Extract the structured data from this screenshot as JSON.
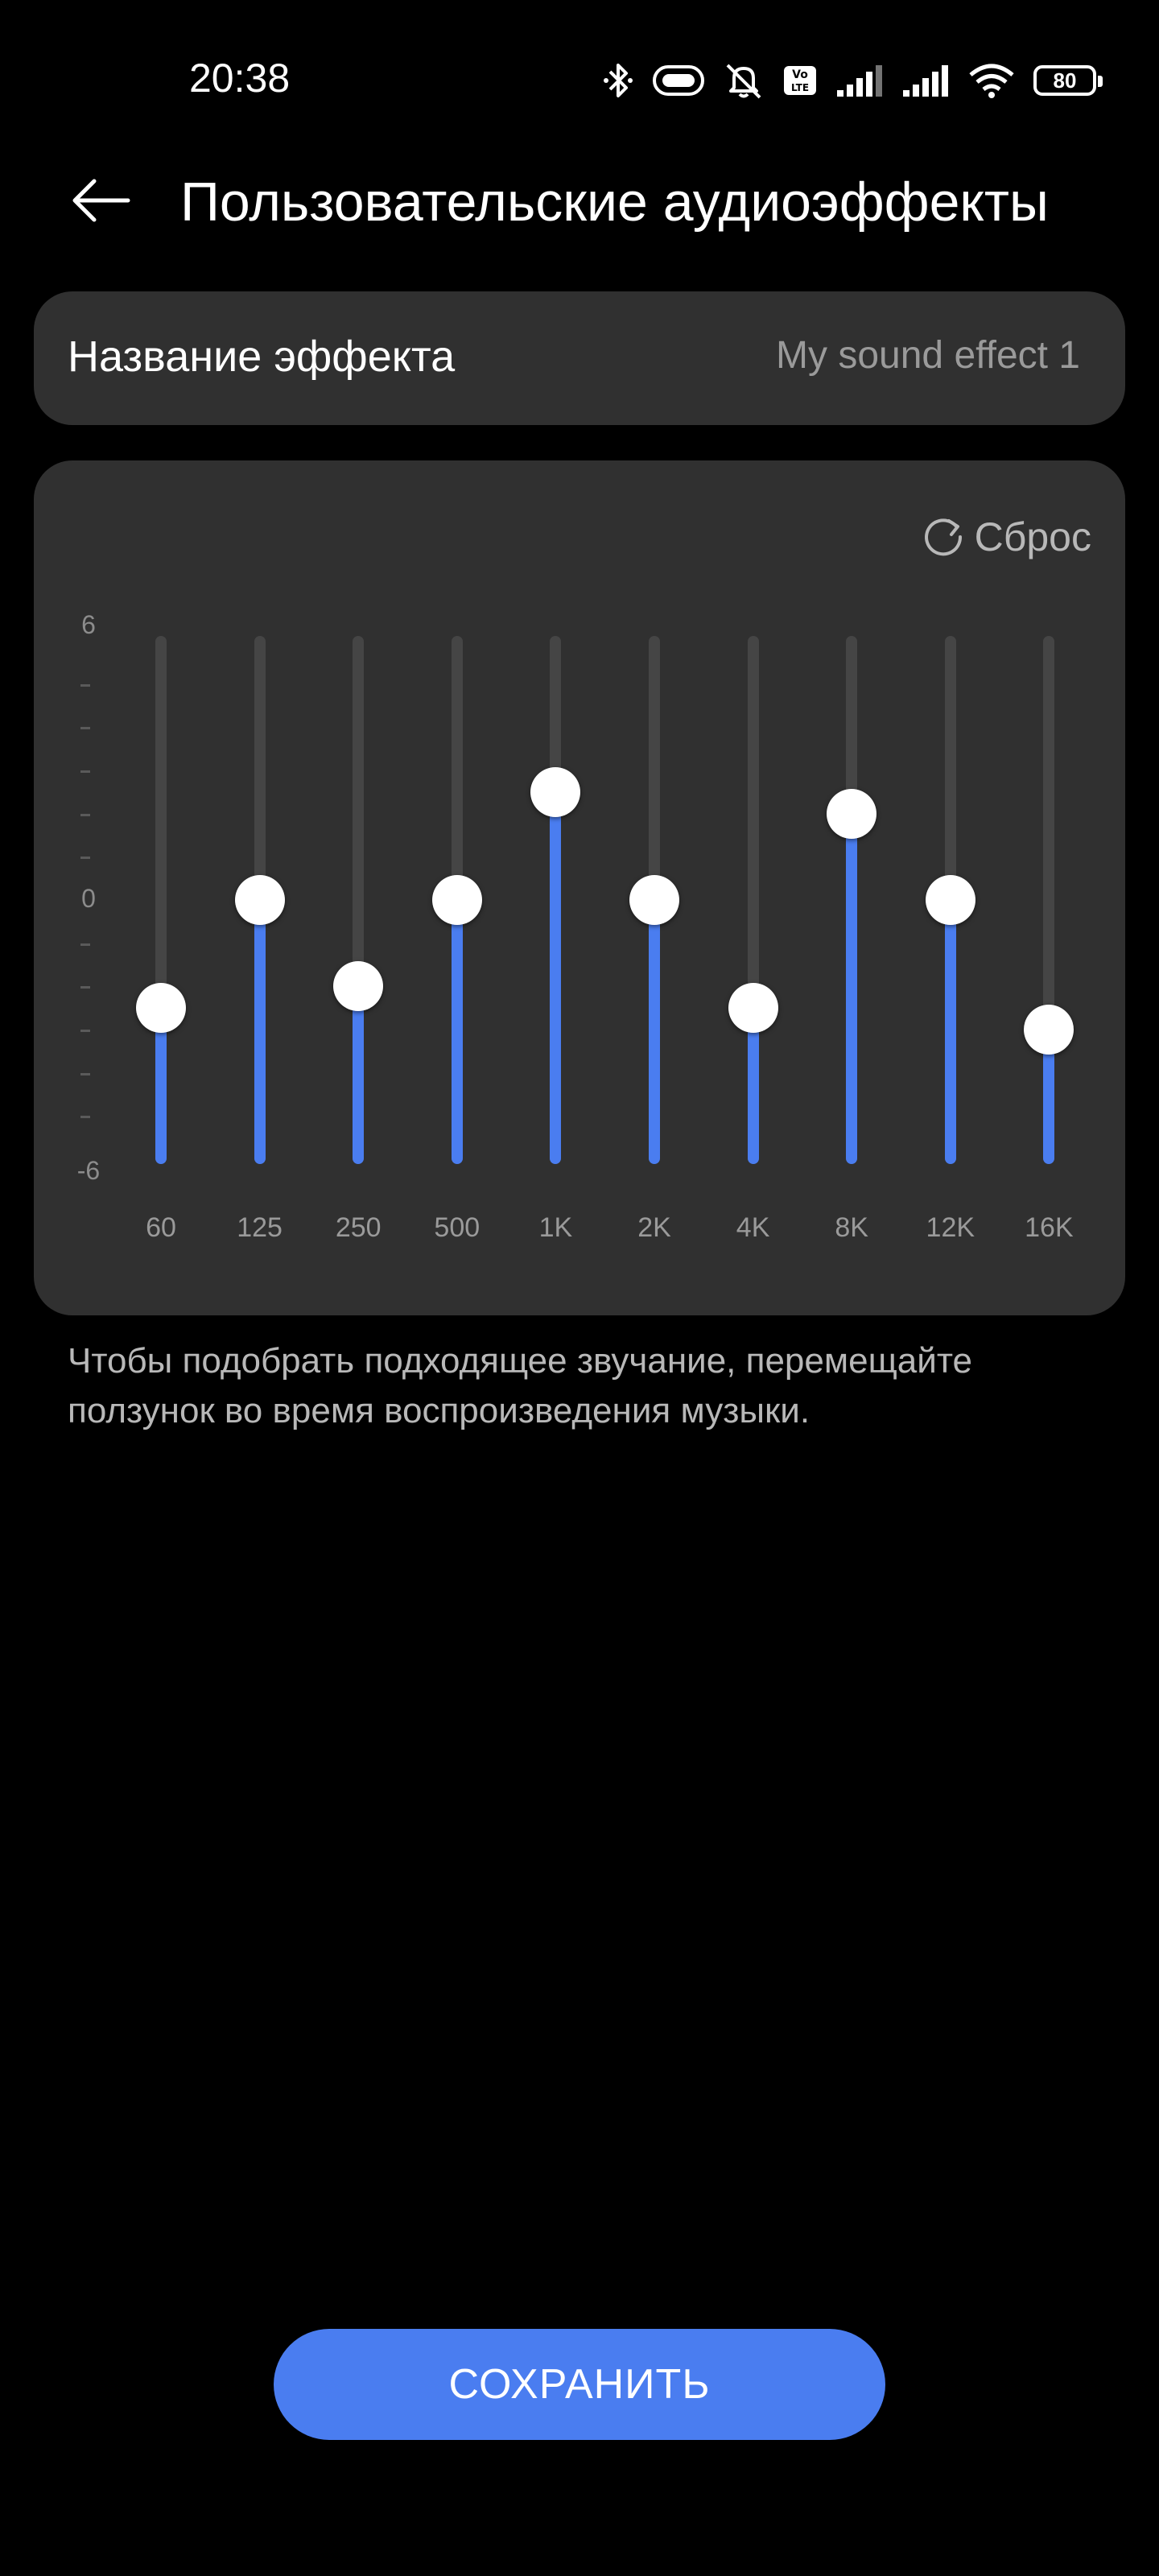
{
  "status_bar": {
    "time": "20:38",
    "battery": "80",
    "icons": [
      "bluetooth-icon",
      "headset-battery-icon",
      "silent-bell-icon",
      "volte-icon",
      "signal-1-icon",
      "signal-2-icon",
      "wifi-icon",
      "battery-icon"
    ]
  },
  "header": {
    "title": "Пользовательские аудиоэффекты",
    "back_icon": "arrow-left-icon"
  },
  "effect_name": {
    "label": "Название эффекта",
    "value": "My sound effect 1"
  },
  "equalizer": {
    "reset_label": "Сброс",
    "reset_icon": "refresh-icon",
    "scale": {
      "max": "6",
      "mid": "0",
      "min": "-6"
    },
    "range": [
      -6,
      6
    ],
    "bands": [
      {
        "label": "60",
        "value": -2.5
      },
      {
        "label": "125",
        "value": 0
      },
      {
        "label": "250",
        "value": -2
      },
      {
        "label": "500",
        "value": 0
      },
      {
        "label": "1K",
        "value": 2.5
      },
      {
        "label": "2K",
        "value": 0
      },
      {
        "label": "4K",
        "value": -2.5
      },
      {
        "label": "8K",
        "value": 2
      },
      {
        "label": "12K",
        "value": 0
      },
      {
        "label": "16K",
        "value": -3
      }
    ],
    "accent_color": "#4a7df0"
  },
  "hint": "Чтобы подобрать подходящее звучание, перемещайте ползунок во время воспроизведения музыки.",
  "save_label": "СОХРАНИТЬ"
}
